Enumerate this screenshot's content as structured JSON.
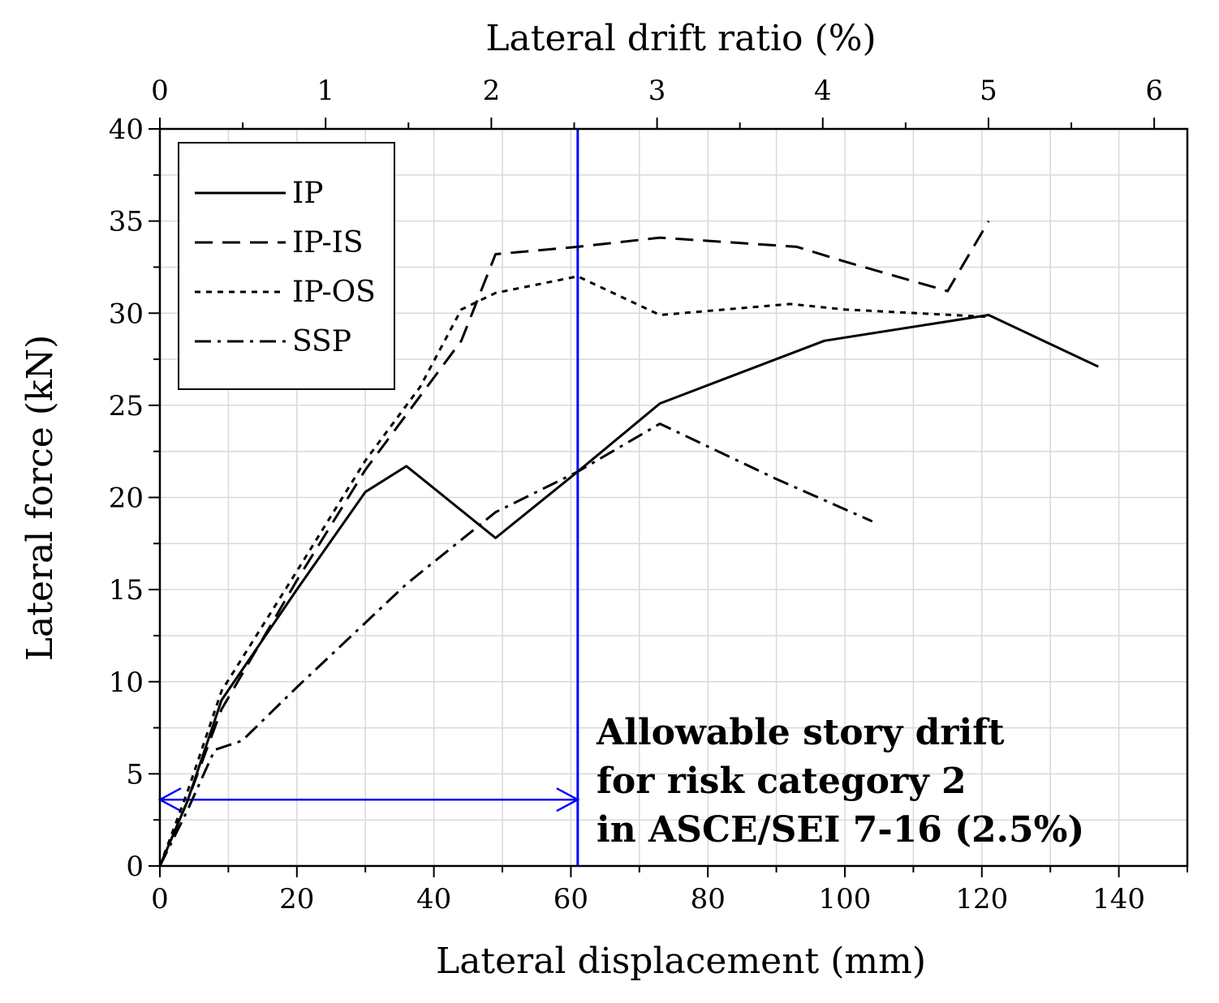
{
  "chart_data": {
    "type": "line",
    "xlabel": "Lateral displacement (mm)",
    "ylabel": "Lateral force (kN)",
    "x2label": "Lateral drift ratio (%)",
    "xlim": [
      0,
      150
    ],
    "ylim": [
      0,
      40
    ],
    "x2lim": [
      0,
      6.2
    ],
    "xticks": [
      0,
      20,
      40,
      60,
      80,
      100,
      120,
      140
    ],
    "yticks": [
      0,
      5,
      10,
      15,
      20,
      25,
      30,
      35,
      40
    ],
    "x2ticks": [
      0,
      1,
      2,
      3,
      4,
      5,
      6
    ],
    "grid": true,
    "legend_position": "top-left",
    "series": [
      {
        "name": "IP",
        "dash": "solid",
        "x": [
          0,
          4,
          9,
          20,
          30,
          36,
          49,
          61,
          73,
          97,
          121,
          137
        ],
        "y": [
          0,
          3.5,
          9,
          15,
          20.3,
          21.7,
          17.8,
          21.4,
          25.1,
          28.5,
          29.9,
          27.1
        ]
      },
      {
        "name": "IP-IS",
        "dash": "dashed",
        "x": [
          0,
          4,
          9,
          20,
          30,
          38,
          44,
          49,
          61,
          73,
          93,
          100,
          115,
          121
        ],
        "y": [
          0,
          3.5,
          8.5,
          15.5,
          21.5,
          25.5,
          28.5,
          33.2,
          33.6,
          34.1,
          33.6,
          32.8,
          31.2,
          35
        ]
      },
      {
        "name": "IP-OS",
        "dash": "dotted",
        "x": [
          0,
          4,
          9,
          20,
          30,
          38,
          44,
          49,
          61,
          73,
          92,
          100,
          121
        ],
        "y": [
          0,
          4,
          9.5,
          16,
          22,
          26,
          30.2,
          31.1,
          32,
          29.9,
          30.5,
          30.2,
          29.8
        ]
      },
      {
        "name": "SSP",
        "dash": "dashdot",
        "x": [
          0,
          4,
          8,
          12,
          20,
          36,
          49,
          61,
          73,
          90,
          104
        ],
        "y": [
          0,
          3,
          6.3,
          6.8,
          9.7,
          15.3,
          19.2,
          21.4,
          24,
          21,
          18.7
        ]
      }
    ],
    "reference_line": {
      "x": 61,
      "color": "#0000ff"
    },
    "range_arrow": {
      "x_start": 0,
      "x_end": 61,
      "y": 3.6,
      "color": "#0000ff"
    },
    "annotation": [
      "Allowable story drift",
      "for risk category 2",
      "in ASCE/SEI 7-16 (2.5%)"
    ]
  }
}
